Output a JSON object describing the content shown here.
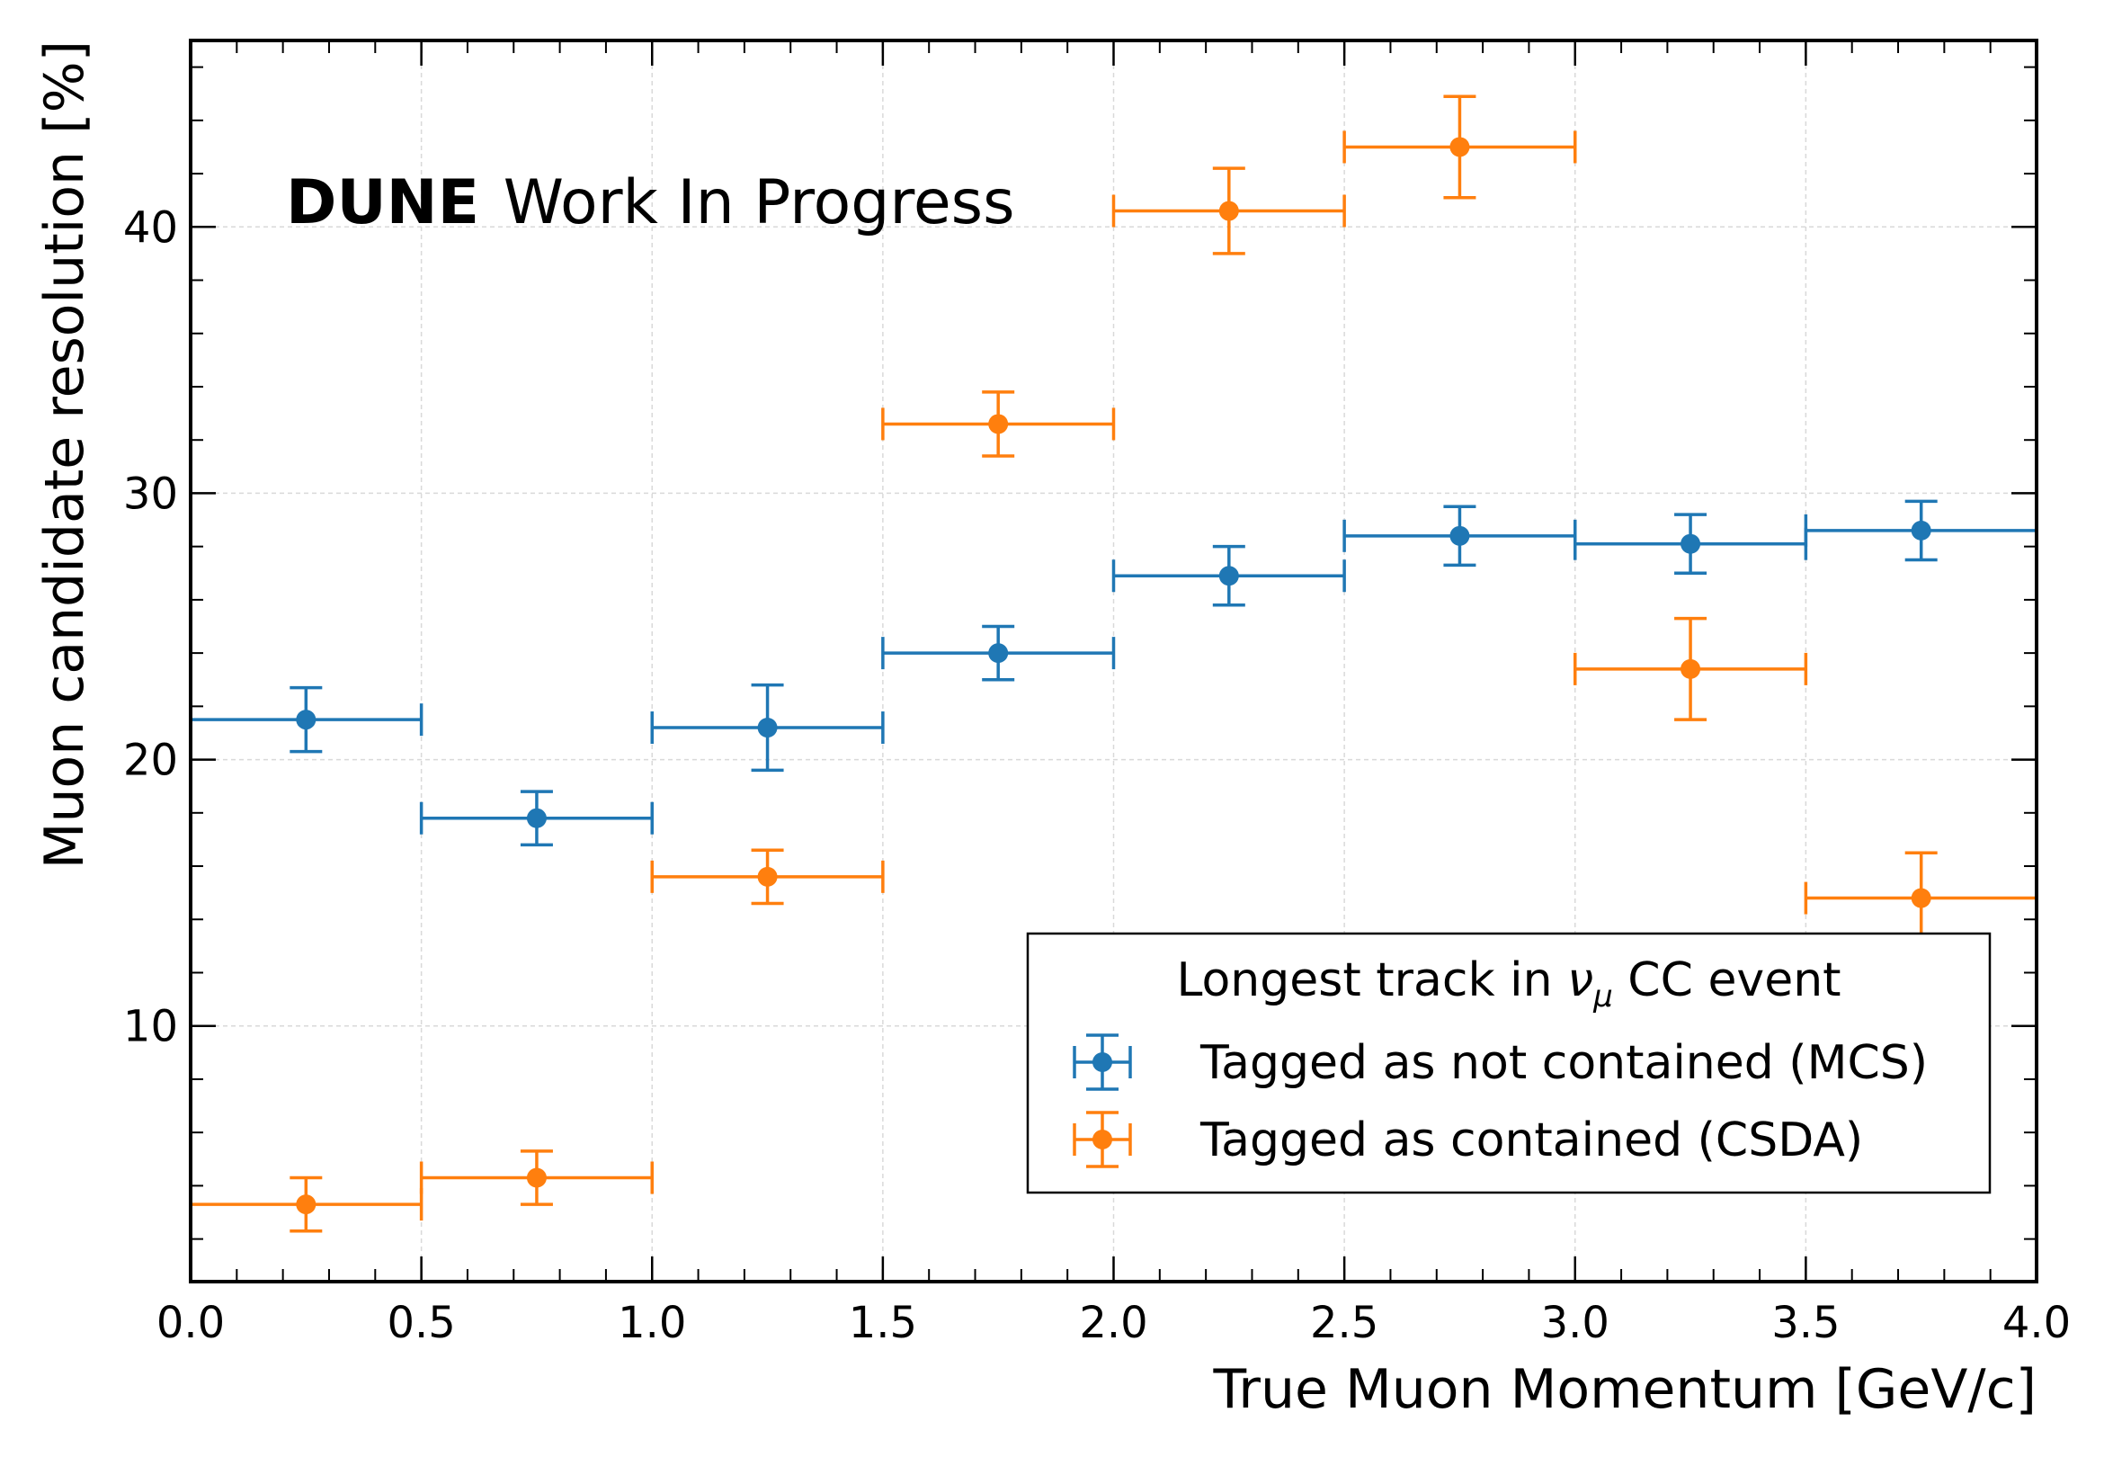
{
  "chart_data": {
    "type": "scatter",
    "xlabel": "True Muon Momentum [GeV/c]",
    "ylabel": "Muon candidate resolution [%]",
    "xlim": [
      0.0,
      4.0
    ],
    "ylim": [
      0.4,
      47.0
    ],
    "x_ticks": [
      "0.0",
      "0.5",
      "1.0",
      "1.5",
      "2.0",
      "2.5",
      "3.0",
      "3.5",
      "4.0"
    ],
    "y_ticks": [
      "10",
      "20",
      "30",
      "40"
    ],
    "grid": true,
    "annotation": {
      "bold": "DUNE",
      "rest": " Work In Progress"
    },
    "legend": {
      "title_prefix": "Longest track in ",
      "title_symbol": "ν",
      "title_subscript": "μ",
      "title_suffix": " CC event",
      "placement": "lower-right"
    },
    "series": [
      {
        "name": "Tagged as not contained (MCS)",
        "color": "#1f77b4",
        "points": [
          {
            "x": 0.25,
            "xerr": 0.25,
            "y": 21.5,
            "yerr": 1.2
          },
          {
            "x": 0.75,
            "xerr": 0.25,
            "y": 17.8,
            "yerr": 1.0
          },
          {
            "x": 1.25,
            "xerr": 0.25,
            "y": 21.2,
            "yerr": 1.6
          },
          {
            "x": 1.75,
            "xerr": 0.25,
            "y": 24.0,
            "yerr": 1.0
          },
          {
            "x": 2.25,
            "xerr": 0.25,
            "y": 26.9,
            "yerr": 1.1
          },
          {
            "x": 2.75,
            "xerr": 0.25,
            "y": 28.4,
            "yerr": 1.1
          },
          {
            "x": 3.25,
            "xerr": 0.25,
            "y": 28.1,
            "yerr": 1.1
          },
          {
            "x": 3.75,
            "xerr": 0.25,
            "y": 28.6,
            "yerr": 1.1
          }
        ]
      },
      {
        "name": "Tagged as contained (CSDA)",
        "color": "#ff7f0e",
        "points": [
          {
            "x": 0.25,
            "xerr": 0.25,
            "y": 3.3,
            "yerr": 1.0
          },
          {
            "x": 0.75,
            "xerr": 0.25,
            "y": 4.3,
            "yerr": 1.0
          },
          {
            "x": 1.25,
            "xerr": 0.25,
            "y": 15.6,
            "yerr": 1.0
          },
          {
            "x": 1.75,
            "xerr": 0.25,
            "y": 32.6,
            "yerr": 1.2
          },
          {
            "x": 2.25,
            "xerr": 0.25,
            "y": 40.6,
            "yerr": 1.6
          },
          {
            "x": 2.75,
            "xerr": 0.25,
            "y": 43.0,
            "yerr": 1.9
          },
          {
            "x": 3.25,
            "xerr": 0.25,
            "y": 23.4,
            "yerr": 1.9
          },
          {
            "x": 3.75,
            "xerr": 0.25,
            "y": 14.8,
            "yerr": 1.7
          }
        ]
      }
    ]
  }
}
